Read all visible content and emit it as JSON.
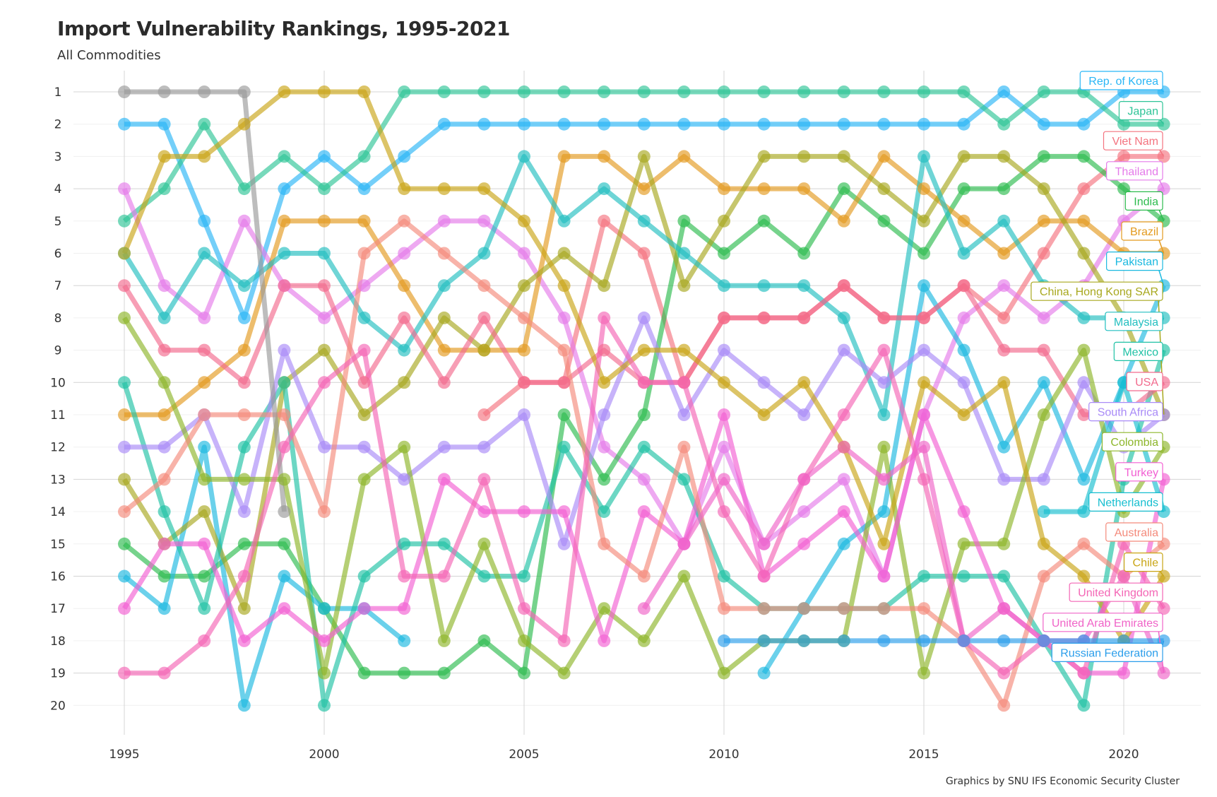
{
  "chart_data": {
    "type": "line",
    "subtype": "bump",
    "title": "Import Vulnerability Rankings, 1995-2021",
    "subtitle": "All Commodities",
    "caption": "Graphics by SNU IFS Economic Security Cluster",
    "xlabel": "",
    "ylabel": "",
    "x": [
      1995,
      1996,
      1997,
      1998,
      1999,
      2000,
      2001,
      2002,
      2003,
      2004,
      2005,
      2006,
      2007,
      2008,
      2009,
      2010,
      2011,
      2012,
      2013,
      2014,
      2015,
      2016,
      2017,
      2018,
      2019,
      2020,
      2021
    ],
    "x_ticks": [
      "1995",
      "2000",
      "2005",
      "2010",
      "2015",
      "2020"
    ],
    "y_ticks": [
      "1",
      "2",
      "3",
      "4",
      "5",
      "6",
      "7",
      "8",
      "9",
      "10",
      "11",
      "12",
      "13",
      "14",
      "15",
      "16",
      "17",
      "18",
      "19",
      "20"
    ],
    "ylim": [
      1,
      20
    ],
    "y_reversed": true,
    "grid": true,
    "legend": "direct labels at right end",
    "series": [
      {
        "name": "Rep. of Korea",
        "color": "#29B6F6",
        "values": [
          2,
          2,
          5,
          8,
          4,
          3,
          4,
          3,
          2,
          2,
          2,
          2,
          2,
          2,
          2,
          2,
          2,
          2,
          2,
          2,
          2,
          2,
          1,
          2,
          2,
          1,
          1
        ]
      },
      {
        "name": "Japan",
        "color": "#2EC497",
        "values": [
          5,
          4,
          2,
          4,
          3,
          4,
          3,
          1,
          1,
          1,
          1,
          1,
          1,
          1,
          1,
          1,
          1,
          1,
          1,
          1,
          1,
          1,
          2,
          1,
          1,
          2,
          2
        ]
      },
      {
        "name": "Viet Nam",
        "color": "#F4737F",
        "values": [
          null,
          null,
          null,
          null,
          null,
          null,
          null,
          null,
          null,
          11,
          10,
          10,
          5,
          6,
          10,
          8,
          8,
          8,
          7,
          8,
          8,
          7,
          8,
          6,
          4,
          3,
          3
        ]
      },
      {
        "name": "Thailand",
        "color": "#E57BEA",
        "values": [
          4,
          7,
          8,
          5,
          7,
          8,
          7,
          6,
          5,
          5,
          6,
          8,
          12,
          13,
          15,
          12,
          15,
          14,
          13,
          16,
          11,
          8,
          7,
          8,
          7,
          5,
          4
        ]
      },
      {
        "name": "India",
        "color": "#2DBB4E",
        "values": [
          15,
          16,
          16,
          15,
          15,
          17,
          19,
          19,
          19,
          18,
          19,
          11,
          13,
          11,
          5,
          6,
          5,
          6,
          4,
          5,
          6,
          4,
          4,
          3,
          3,
          4,
          5
        ]
      },
      {
        "name": "Brazil",
        "color": "#E39A1F",
        "values": [
          11,
          11,
          10,
          9,
          5,
          5,
          5,
          7,
          9,
          9,
          9,
          3,
          3,
          4,
          3,
          4,
          4,
          4,
          5,
          3,
          4,
          5,
          6,
          5,
          5,
          6,
          6
        ]
      },
      {
        "name": "Pakistan",
        "color": "#1BB9E0",
        "values": [
          16,
          17,
          12,
          20,
          16,
          17,
          17,
          18,
          null,
          null,
          null,
          null,
          null,
          null,
          null,
          null,
          19,
          17,
          15,
          14,
          7,
          9,
          12,
          10,
          13,
          10,
          7
        ]
      },
      {
        "name": "China, Hong Kong SAR",
        "color": "#A8A81E",
        "values": [
          13,
          15,
          14,
          17,
          10,
          9,
          11,
          10,
          8,
          9,
          7,
          6,
          7,
          3,
          7,
          5,
          3,
          3,
          3,
          4,
          5,
          3,
          3,
          4,
          6,
          8,
          11
        ]
      },
      {
        "name": "Malaysia",
        "color": "#22BFC0",
        "values": [
          6,
          8,
          6,
          7,
          6,
          6,
          8,
          9,
          7,
          6,
          3,
          5,
          4,
          5,
          6,
          7,
          7,
          7,
          8,
          11,
          3,
          6,
          5,
          7,
          8,
          8,
          8
        ]
      },
      {
        "name": "Mexico",
        "color": "#1FC1A5",
        "values": [
          10,
          14,
          17,
          12,
          10,
          20,
          16,
          15,
          15,
          16,
          16,
          12,
          14,
          12,
          13,
          16,
          17,
          17,
          17,
          17,
          16,
          16,
          16,
          18,
          20,
          13,
          9
        ]
      },
      {
        "name": "USA",
        "color": "#F26A8D",
        "values": [
          7,
          9,
          9,
          10,
          7,
          7,
          10,
          8,
          10,
          8,
          10,
          10,
          9,
          10,
          10,
          8,
          8,
          8,
          7,
          8,
          8,
          7,
          9,
          9,
          11,
          11,
          10
        ]
      },
      {
        "name": "South Africa",
        "color": "#A98BF7",
        "values": [
          12,
          12,
          11,
          14,
          9,
          12,
          12,
          13,
          12,
          12,
          11,
          15,
          11,
          8,
          11,
          9,
          10,
          11,
          9,
          10,
          9,
          10,
          13,
          13,
          10,
          12,
          11
        ]
      },
      {
        "name": "Colombia",
        "color": "#8DB62A",
        "values": [
          8,
          10,
          13,
          13,
          13,
          19,
          13,
          12,
          18,
          15,
          18,
          19,
          17,
          18,
          16,
          19,
          18,
          18,
          18,
          12,
          19,
          15,
          15,
          11,
          9,
          14,
          12
        ]
      },
      {
        "name": "Turkey",
        "color": "#F25FD3",
        "values": [
          17,
          15,
          15,
          18,
          17,
          18,
          17,
          17,
          13,
          14,
          14,
          14,
          18,
          14,
          15,
          11,
          16,
          15,
          14,
          16,
          11,
          14,
          17,
          18,
          19,
          19,
          13
        ]
      },
      {
        "name": "Netherlands",
        "color": "#17BFD0",
        "values": [
          null,
          null,
          null,
          null,
          null,
          null,
          null,
          null,
          null,
          null,
          null,
          null,
          null,
          null,
          null,
          null,
          null,
          null,
          null,
          null,
          null,
          null,
          null,
          14,
          14,
          10,
          14
        ]
      },
      {
        "name": "Australia",
        "color": "#F48A7B",
        "values": [
          14,
          13,
          11,
          11,
          11,
          14,
          6,
          5,
          6,
          7,
          8,
          9,
          15,
          16,
          12,
          17,
          17,
          17,
          17,
          17,
          17,
          18,
          20,
          16,
          15,
          16,
          15
        ]
      },
      {
        "name": "Chile",
        "color": "#C9A516",
        "values": [
          6,
          3,
          3,
          2,
          1,
          1,
          1,
          4,
          4,
          4,
          5,
          7,
          10,
          9,
          9,
          10,
          11,
          10,
          12,
          15,
          10,
          11,
          10,
          15,
          16,
          18,
          16
        ]
      },
      {
        "name": "United Kingdom",
        "color": "#F466B5",
        "values": [
          19,
          19,
          18,
          16,
          12,
          10,
          9,
          16,
          16,
          13,
          17,
          18,
          8,
          10,
          10,
          14,
          16,
          13,
          11,
          9,
          13,
          18,
          19,
          18,
          19,
          15,
          17
        ]
      },
      {
        "name": "United Arab Emirates",
        "color": "#F064C8",
        "values": [
          null,
          null,
          null,
          null,
          null,
          null,
          null,
          null,
          null,
          null,
          null,
          null,
          null,
          17,
          15,
          13,
          15,
          13,
          12,
          13,
          12,
          18,
          17,
          18,
          18,
          16,
          19
        ]
      },
      {
        "name": "Russian Federation",
        "color": "#2B9EEB",
        "values": [
          null,
          null,
          null,
          null,
          null,
          null,
          null,
          null,
          null,
          null,
          null,
          null,
          null,
          null,
          null,
          18,
          18,
          18,
          18,
          18,
          18,
          18,
          18,
          18,
          18,
          18,
          18
        ]
      },
      {
        "name": "",
        "color": "#999999",
        "values": [
          1,
          1,
          1,
          1,
          14,
          null,
          null,
          null,
          null,
          null,
          null,
          null,
          null,
          null,
          null,
          null,
          null,
          null,
          null,
          null,
          null,
          null,
          null,
          null,
          null,
          null,
          null
        ]
      }
    ]
  }
}
